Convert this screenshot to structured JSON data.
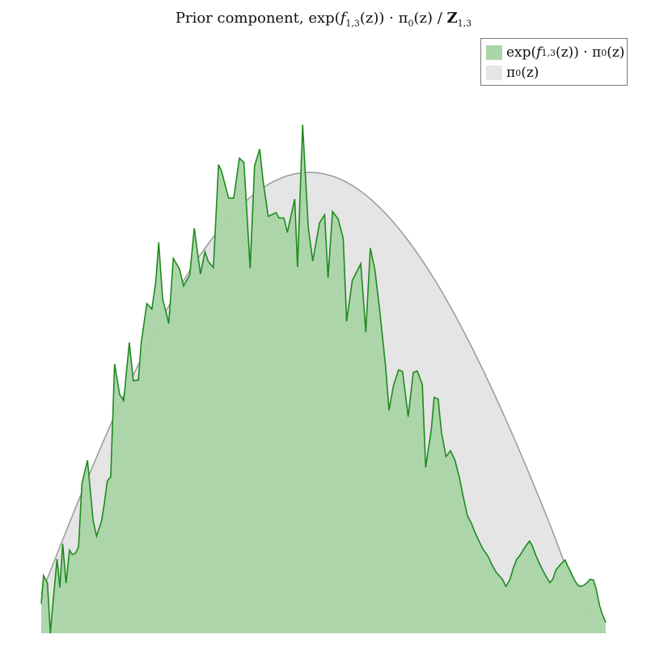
{
  "title": {
    "prefix": "Prior component, exp(",
    "f_letter": "f",
    "f_sub": "1,3",
    "middle": "(z)) · π",
    "pi_sub": "0",
    "after": "(z) / ",
    "Z_letter": "Z",
    "Z_sub": "1,3"
  },
  "legend": {
    "position": "top-right",
    "entries": [
      {
        "pre": "exp(",
        "f": "f",
        "fsub": "1,3",
        "mid": "(z)) · π",
        "pisub": "0",
        "post": "(z)",
        "color": "#a9d5a7"
      },
      {
        "pre": "π",
        "pisub": "0",
        "post": "(z)",
        "color": "#e5e5e5"
      }
    ]
  },
  "colors": {
    "product_fill": "#a9d5a7",
    "product_line": "#1e8a1e",
    "prior_fill": "#e5e5e5",
    "prior_line": "#9a9a9a"
  },
  "chart_data": {
    "type": "area",
    "xlim": [
      0,
      1
    ],
    "ylim": [
      0,
      1
    ],
    "axes_visible": false,
    "grid": false,
    "series": [
      {
        "legend_index": 1,
        "kind": "prior_curve",
        "x": [
          0.0,
          0.05,
          0.1,
          0.15,
          0.2,
          0.25,
          0.3,
          0.35,
          0.4,
          0.45,
          0.5,
          0.55,
          0.6,
          0.65,
          0.7,
          0.75,
          0.8,
          0.85,
          0.9,
          0.95,
          1.0
        ],
        "y": [
          0.073,
          0.205,
          0.332,
          0.45,
          0.557,
          0.651,
          0.729,
          0.79,
          0.832,
          0.853,
          0.853,
          0.832,
          0.79,
          0.729,
          0.651,
          0.557,
          0.45,
          0.332,
          0.205,
          0.073,
          0.0
        ]
      },
      {
        "legend_index": 0,
        "kind": "product_curve",
        "x": [
          0.0,
          0.004,
          0.011,
          0.016,
          0.022,
          0.028,
          0.033,
          0.038,
          0.044,
          0.05,
          0.055,
          0.061,
          0.066,
          0.072,
          0.082,
          0.092,
          0.098,
          0.107,
          0.112,
          0.117,
          0.123,
          0.13,
          0.139,
          0.146,
          0.156,
          0.163,
          0.172,
          0.177,
          0.187,
          0.196,
          0.203,
          0.208,
          0.215,
          0.226,
          0.234,
          0.245,
          0.252,
          0.263,
          0.271,
          0.282,
          0.29,
          0.296,
          0.305,
          0.314,
          0.319,
          0.332,
          0.341,
          0.351,
          0.359,
          0.37,
          0.378,
          0.387,
          0.393,
          0.402,
          0.416,
          0.421,
          0.43,
          0.436,
          0.449,
          0.454,
          0.463,
          0.473,
          0.481,
          0.493,
          0.502,
          0.508,
          0.516,
          0.526,
          0.535,
          0.541,
          0.551,
          0.566,
          0.575,
          0.583,
          0.591,
          0.599,
          0.61,
          0.616,
          0.624,
          0.633,
          0.64,
          0.65,
          0.659,
          0.666,
          0.675,
          0.681,
          0.691,
          0.696,
          0.703,
          0.709,
          0.717,
          0.725,
          0.733,
          0.741,
          0.747,
          0.755,
          0.762,
          0.768,
          0.775,
          0.782,
          0.792,
          0.798,
          0.806,
          0.817,
          0.823,
          0.83,
          0.836,
          0.842,
          0.849,
          0.854,
          0.859,
          0.865,
          0.87,
          0.876,
          0.882,
          0.887,
          0.894,
          0.901,
          0.906,
          0.912,
          0.92,
          0.928,
          0.933,
          0.94,
          0.945,
          0.95,
          0.955,
          0.961,
          0.967,
          0.972,
          0.978,
          0.983,
          0.986,
          0.989,
          0.993,
          1.0
        ],
        "y": [
          0.055,
          0.107,
          0.093,
          0.0,
          0.071,
          0.138,
          0.085,
          0.166,
          0.093,
          0.154,
          0.146,
          0.149,
          0.16,
          0.278,
          0.321,
          0.209,
          0.18,
          0.209,
          0.243,
          0.283,
          0.29,
          0.5,
          0.443,
          0.432,
          0.54,
          0.469,
          0.47,
          0.538,
          0.612,
          0.602,
          0.654,
          0.726,
          0.621,
          0.575,
          0.696,
          0.676,
          0.645,
          0.665,
          0.752,
          0.667,
          0.708,
          0.69,
          0.679,
          0.87,
          0.859,
          0.808,
          0.808,
          0.882,
          0.874,
          0.677,
          0.868,
          0.899,
          0.84,
          0.774,
          0.781,
          0.771,
          0.771,
          0.744,
          0.806,
          0.68,
          0.944,
          0.753,
          0.691,
          0.762,
          0.777,
          0.66,
          0.783,
          0.769,
          0.733,
          0.579,
          0.655,
          0.686,
          0.559,
          0.715,
          0.675,
          0.605,
          0.495,
          0.414,
          0.46,
          0.489,
          0.486,
          0.402,
          0.484,
          0.487,
          0.462,
          0.308,
          0.378,
          0.438,
          0.435,
          0.373,
          0.328,
          0.339,
          0.321,
          0.288,
          0.256,
          0.218,
          0.204,
          0.188,
          0.172,
          0.157,
          0.142,
          0.128,
          0.113,
          0.1,
          0.087,
          0.099,
          0.12,
          0.137,
          0.146,
          0.155,
          0.163,
          0.171,
          0.162,
          0.145,
          0.131,
          0.12,
          0.106,
          0.094,
          0.1,
          0.118,
          0.128,
          0.136,
          0.124,
          0.109,
          0.098,
          0.09,
          0.087,
          0.089,
          0.094,
          0.1,
          0.099,
          0.083,
          0.067,
          0.052,
          0.038,
          0.02
        ]
      }
    ]
  }
}
